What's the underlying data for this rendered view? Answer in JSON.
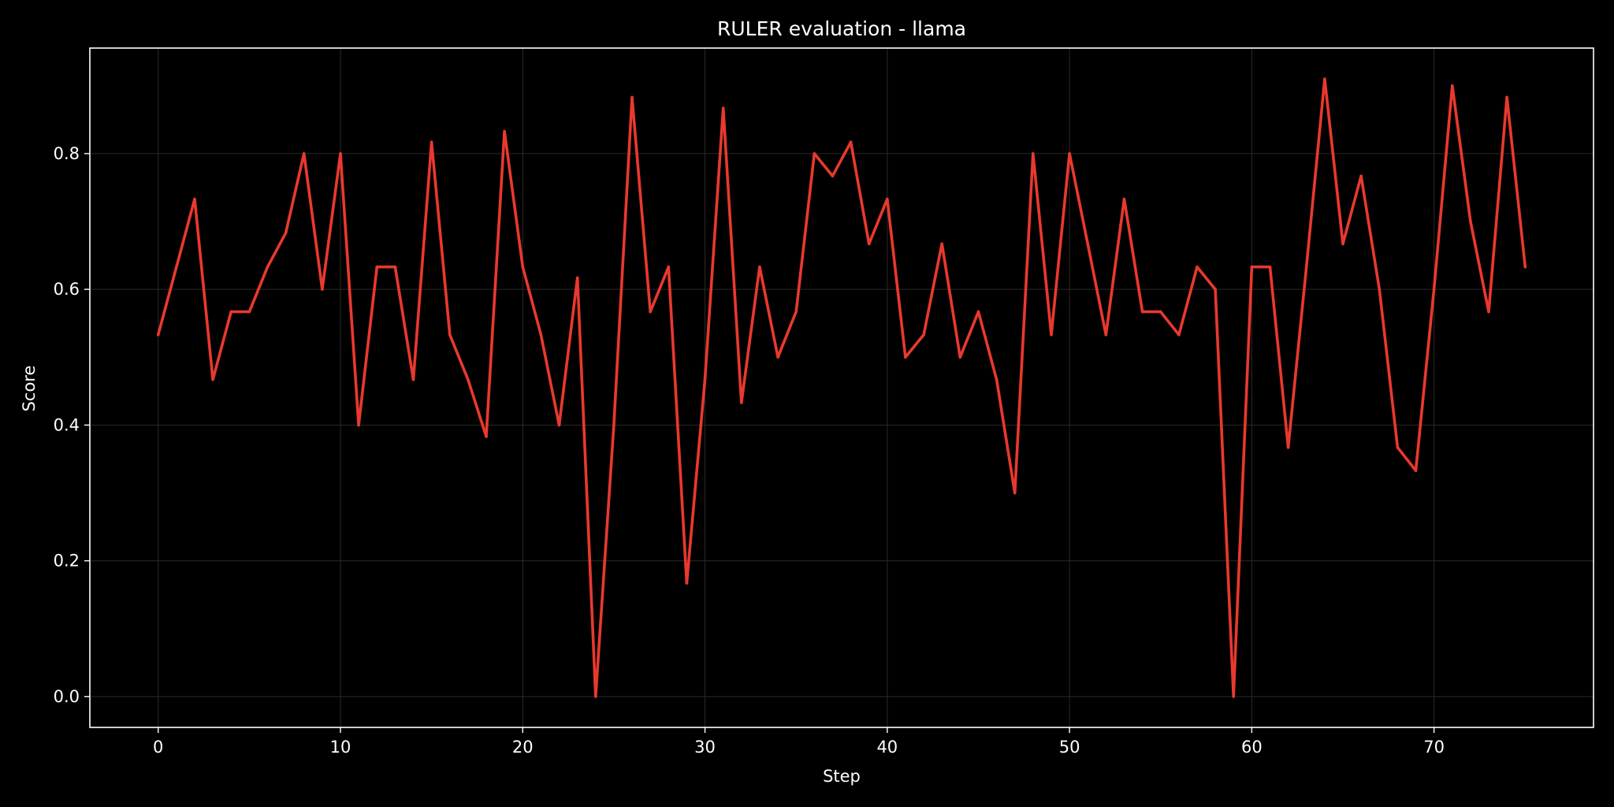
{
  "chart_data": {
    "type": "line",
    "title": "RULER evaluation - llama",
    "xlabel": "Step",
    "ylabel": "Score",
    "xlim": [
      -3.75,
      78.75
    ],
    "ylim": [
      -0.0455,
      0.9555
    ],
    "xticks": [
      0,
      10,
      20,
      30,
      40,
      50,
      60,
      70
    ],
    "xtick_labels": [
      "0",
      "10",
      "20",
      "30",
      "40",
      "50",
      "60",
      "70"
    ],
    "yticks": [
      0.0,
      0.2,
      0.4,
      0.6,
      0.8
    ],
    "ytick_labels": [
      "0.0",
      "0.2",
      "0.4",
      "0.6",
      "0.8"
    ],
    "grid": true,
    "series": [
      {
        "color": "#e8392e",
        "x": [
          0,
          1,
          2,
          3,
          4,
          5,
          6,
          7,
          8,
          9,
          10,
          11,
          12,
          13,
          14,
          15,
          16,
          17,
          18,
          19,
          20,
          21,
          22,
          23,
          24,
          25,
          26,
          27,
          28,
          29,
          30,
          31,
          32,
          33,
          34,
          35,
          36,
          37,
          38,
          39,
          40,
          41,
          42,
          43,
          44,
          45,
          46,
          47,
          48,
          49,
          50,
          51,
          52,
          53,
          54,
          55,
          56,
          57,
          58,
          59,
          60,
          61,
          62,
          63,
          64,
          65,
          66,
          67,
          68,
          69,
          70,
          71,
          72,
          73,
          74,
          75
        ],
        "y": [
          0.533,
          0.633,
          0.733,
          0.467,
          0.567,
          0.567,
          0.633,
          0.683,
          0.8,
          0.6,
          0.8,
          0.4,
          0.633,
          0.633,
          0.467,
          0.817,
          0.533,
          0.467,
          0.383,
          0.833,
          0.633,
          0.533,
          0.4,
          0.617,
          0.0,
          0.4,
          0.883,
          0.567,
          0.633,
          0.167,
          0.467,
          0.867,
          0.433,
          0.633,
          0.5,
          0.567,
          0.8,
          0.767,
          0.817,
          0.667,
          0.733,
          0.5,
          0.533,
          0.667,
          0.5,
          0.567,
          0.467,
          0.3,
          0.8,
          0.533,
          0.8,
          0.667,
          0.533,
          0.733,
          0.567,
          0.567,
          0.533,
          0.633,
          0.6,
          0.0,
          0.633,
          0.633,
          0.367,
          0.633,
          0.91,
          0.667,
          0.767,
          0.6,
          0.367,
          0.333,
          0.6,
          0.9,
          0.7,
          0.567,
          0.883,
          0.633
        ]
      }
    ]
  },
  "colors": {
    "background": "#000000",
    "axes_frame": "#ffffff",
    "grid": "#2a2a2a",
    "line": "#e8392e"
  }
}
